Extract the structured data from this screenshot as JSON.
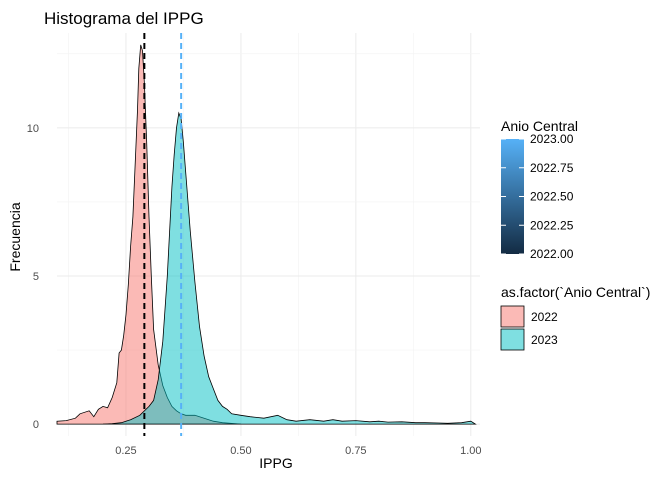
{
  "chart_data": {
    "type": "area",
    "title": "Histograma del IPPG",
    "xlabel": "IPPG",
    "ylabel": "Frecuencia",
    "xlim": [
      0.1,
      1.02
    ],
    "ylim": [
      -0.4,
      13.2
    ],
    "x_ticks": [
      0.25,
      0.5,
      0.75,
      1.0
    ],
    "x_tick_labels": [
      "0.25",
      "0.50",
      "0.75",
      "1.00"
    ],
    "y_ticks": [
      0,
      5,
      10
    ],
    "y_tick_labels": [
      "0",
      "5",
      "10"
    ],
    "grid": true,
    "legend_position": "right",
    "series": [
      {
        "name": "2022",
        "color": "#F8766D",
        "points": [
          [
            0.1,
            0.1
          ],
          [
            0.12,
            0.12
          ],
          [
            0.14,
            0.2
          ],
          [
            0.15,
            0.35
          ],
          [
            0.17,
            0.45
          ],
          [
            0.18,
            0.25
          ],
          [
            0.19,
            0.5
          ],
          [
            0.2,
            0.6
          ],
          [
            0.21,
            0.55
          ],
          [
            0.22,
            0.9
          ],
          [
            0.23,
            1.4
          ],
          [
            0.235,
            2.4
          ],
          [
            0.24,
            2.5
          ],
          [
            0.245,
            3.0
          ],
          [
            0.25,
            3.7
          ],
          [
            0.255,
            4.7
          ],
          [
            0.26,
            6.0
          ],
          [
            0.265,
            7.0
          ],
          [
            0.27,
            8.8
          ],
          [
            0.275,
            10.6
          ],
          [
            0.278,
            12.0
          ],
          [
            0.282,
            12.8
          ],
          [
            0.286,
            12.6
          ],
          [
            0.29,
            11.5
          ],
          [
            0.295,
            9.5
          ],
          [
            0.3,
            7.0
          ],
          [
            0.305,
            5.0
          ],
          [
            0.31,
            3.2
          ],
          [
            0.32,
            2.0
          ],
          [
            0.33,
            1.3
          ],
          [
            0.34,
            0.9
          ],
          [
            0.35,
            0.6
          ],
          [
            0.36,
            0.45
          ],
          [
            0.37,
            0.35
          ],
          [
            0.38,
            0.3
          ],
          [
            0.39,
            0.3
          ],
          [
            0.4,
            0.3
          ],
          [
            0.42,
            0.2
          ],
          [
            0.44,
            0.1
          ],
          [
            0.46,
            0.05
          ],
          [
            0.5,
            0.0
          ]
        ]
      },
      {
        "name": "2023",
        "color": "#00BFC4",
        "points": [
          [
            0.2,
            0.0
          ],
          [
            0.22,
            0.02
          ],
          [
            0.24,
            0.05
          ],
          [
            0.26,
            0.15
          ],
          [
            0.28,
            0.3
          ],
          [
            0.3,
            0.6
          ],
          [
            0.31,
            0.8
          ],
          [
            0.32,
            1.5
          ],
          [
            0.33,
            2.8
          ],
          [
            0.34,
            5.0
          ],
          [
            0.345,
            6.5
          ],
          [
            0.35,
            8.0
          ],
          [
            0.355,
            9.1
          ],
          [
            0.36,
            10.0
          ],
          [
            0.365,
            10.5
          ],
          [
            0.37,
            10.3
          ],
          [
            0.375,
            9.5
          ],
          [
            0.38,
            8.5
          ],
          [
            0.39,
            6.5
          ],
          [
            0.4,
            4.8
          ],
          [
            0.41,
            3.3
          ],
          [
            0.42,
            2.3
          ],
          [
            0.43,
            1.6
          ],
          [
            0.44,
            1.2
          ],
          [
            0.45,
            0.8
          ],
          [
            0.46,
            0.6
          ],
          [
            0.47,
            0.5
          ],
          [
            0.48,
            0.35
          ],
          [
            0.5,
            0.3
          ],
          [
            0.52,
            0.25
          ],
          [
            0.55,
            0.2
          ],
          [
            0.58,
            0.3
          ],
          [
            0.6,
            0.15
          ],
          [
            0.62,
            0.1
          ],
          [
            0.65,
            0.15
          ],
          [
            0.68,
            0.1
          ],
          [
            0.7,
            0.15
          ],
          [
            0.72,
            0.1
          ],
          [
            0.75,
            0.12
          ],
          [
            0.78,
            0.08
          ],
          [
            0.8,
            0.1
          ],
          [
            0.82,
            0.07
          ],
          [
            0.85,
            0.08
          ],
          [
            0.88,
            0.05
          ],
          [
            0.9,
            0.05
          ],
          [
            0.93,
            0.04
          ],
          [
            0.95,
            0.03
          ],
          [
            0.98,
            0.05
          ],
          [
            1.0,
            0.1
          ],
          [
            1.01,
            0.0
          ]
        ]
      }
    ],
    "vlines": [
      {
        "x": 0.29,
        "color": "#000000",
        "dash": true
      },
      {
        "x": 0.37,
        "color": "#56B1F7",
        "dash": true
      }
    ],
    "legend_gradient": {
      "title": "Anio Central",
      "min": 2022.0,
      "max": 2023.0,
      "ticks": [
        "2023.00",
        "2022.75",
        "2022.50",
        "2022.25",
        "2022.00"
      ],
      "color_low": "#132B43",
      "color_high": "#56B1F7"
    },
    "legend_fill": {
      "title": "as.factor(`Anio Central`)",
      "entries": [
        {
          "label": "2022",
          "color": "#F8766D"
        },
        {
          "label": "2023",
          "color": "#00BFC4"
        }
      ]
    }
  }
}
